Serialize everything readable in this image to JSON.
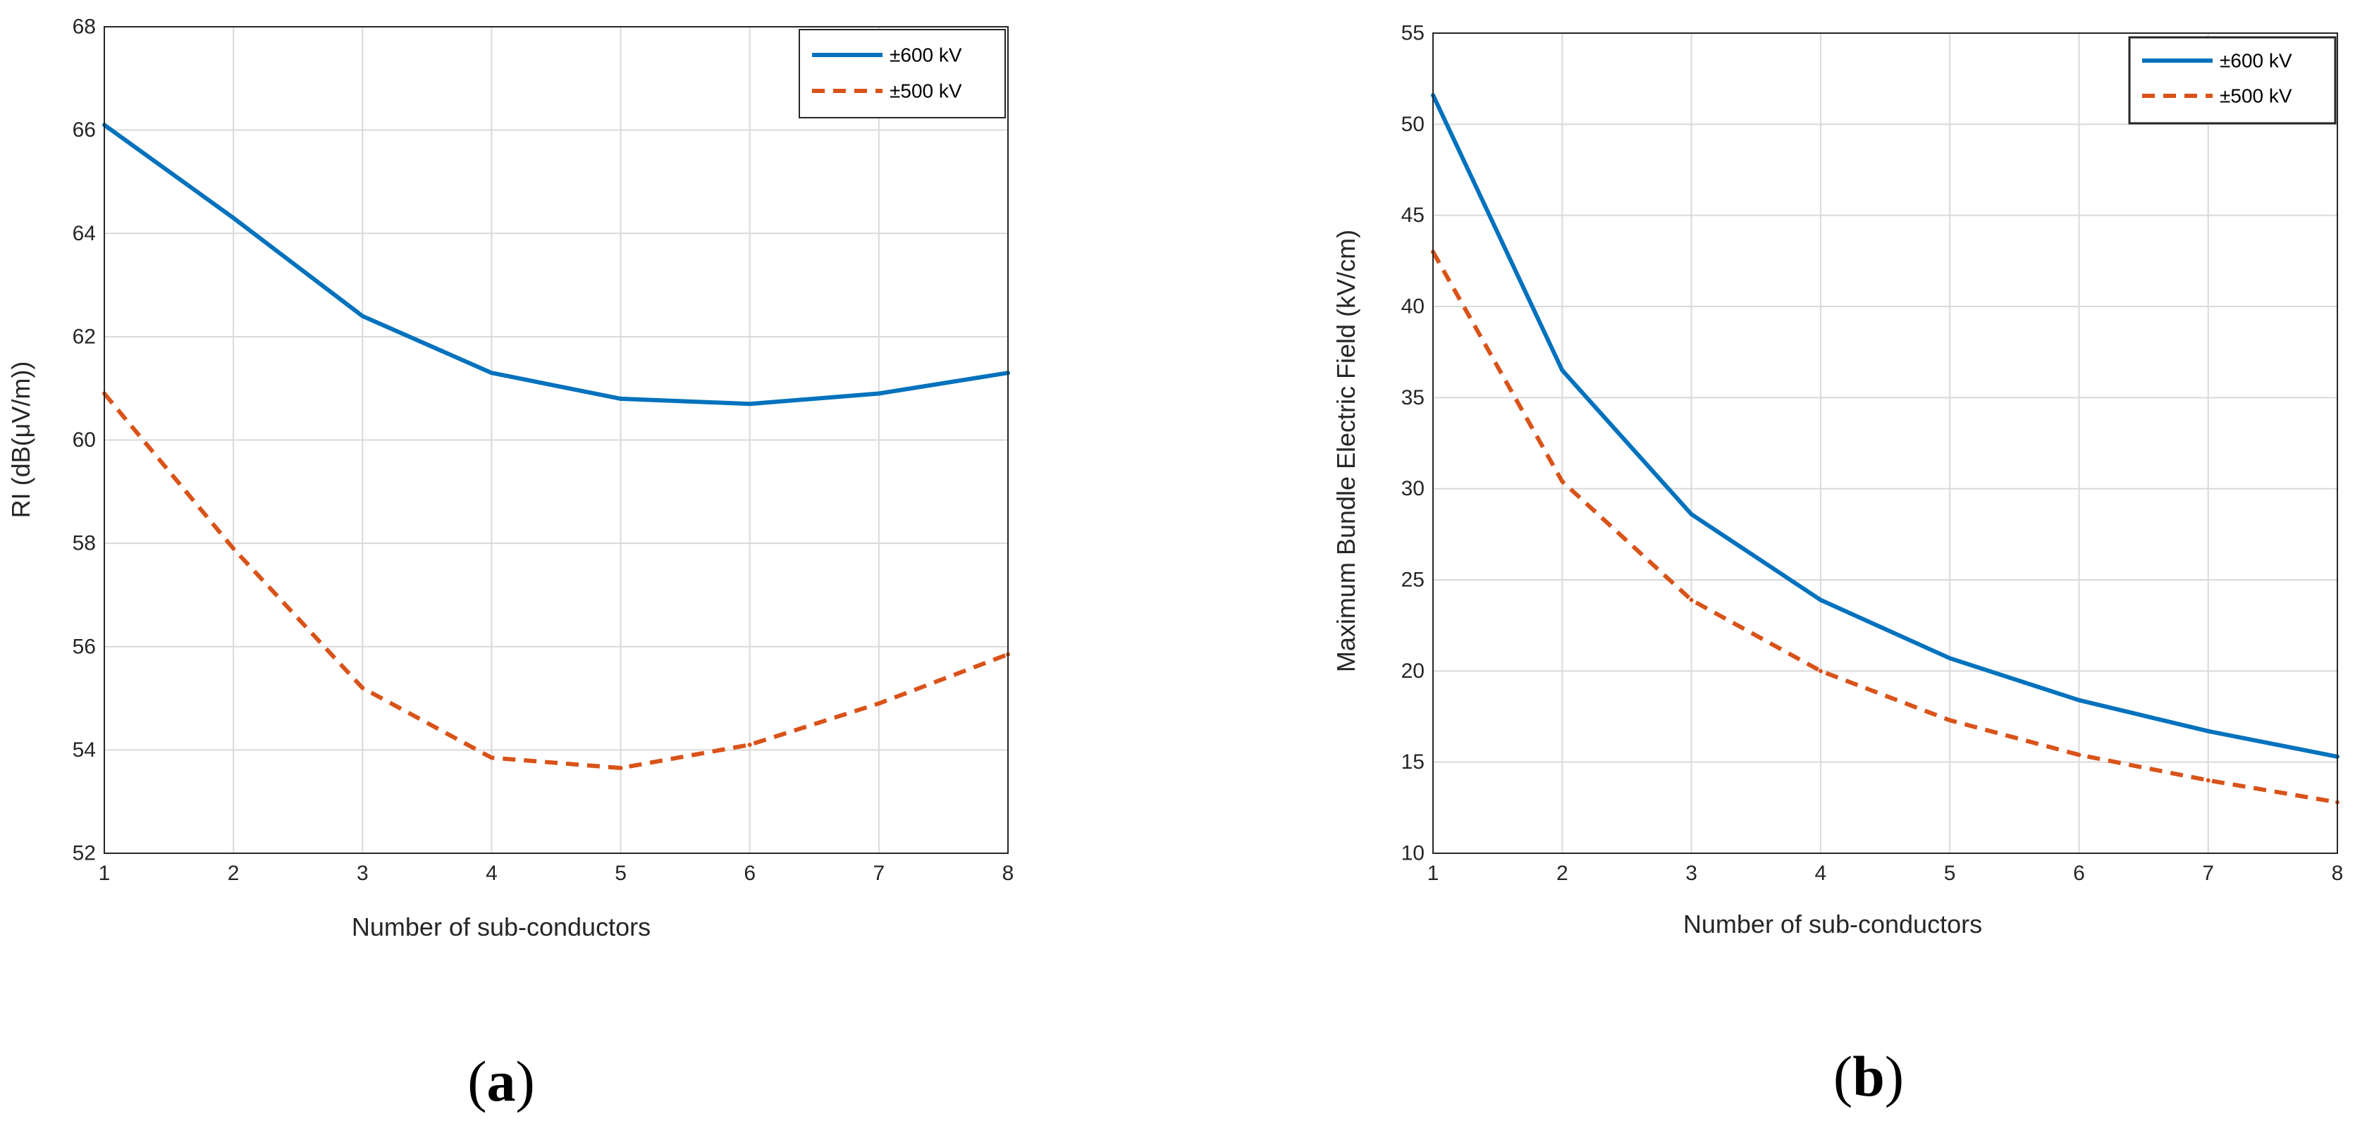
{
  "chart_data": [
    {
      "type": "line",
      "panel_label": "(a)",
      "panel_letter": "a",
      "title": "",
      "xlabel": "Number of sub-conductors",
      "ylabel": "RI (dB(μV/m))",
      "x": [
        1,
        2,
        3,
        4,
        5,
        6,
        7,
        8
      ],
      "xlim": [
        1,
        8
      ],
      "ylim": [
        52,
        68
      ],
      "xticks": [
        1,
        2,
        3,
        4,
        5,
        6,
        7,
        8
      ],
      "yticks": [
        52,
        54,
        56,
        58,
        60,
        62,
        64,
        66,
        68
      ],
      "grid": true,
      "legend_position": "top-right",
      "series": [
        {
          "name": "±600 kV",
          "color": "#0072BD",
          "style": "solid",
          "values": [
            66.1,
            64.3,
            62.4,
            61.3,
            60.8,
            60.7,
            60.9,
            61.3
          ]
        },
        {
          "name": "±500 kV",
          "color": "#D95319",
          "style": "dashed",
          "values": [
            60.9,
            57.9,
            55.2,
            53.85,
            53.65,
            54.1,
            54.9,
            55.85
          ]
        }
      ]
    },
    {
      "type": "line",
      "panel_label": "(b)",
      "panel_letter": "b",
      "title": "",
      "xlabel": "Number of sub-conductors",
      "ylabel": "Maximum Bundle Electric Field (kV/cm)",
      "x": [
        1,
        2,
        3,
        4,
        5,
        6,
        7,
        8
      ],
      "xlim": [
        1,
        8
      ],
      "ylim": [
        10,
        55
      ],
      "xticks": [
        1,
        2,
        3,
        4,
        5,
        6,
        7,
        8
      ],
      "yticks": [
        10,
        15,
        20,
        25,
        30,
        35,
        40,
        45,
        50,
        55
      ],
      "grid": true,
      "legend_position": "top-right",
      "series": [
        {
          "name": "±600 kV",
          "color": "#0072BD",
          "style": "solid",
          "values": [
            51.6,
            36.5,
            28.6,
            23.9,
            20.7,
            18.4,
            16.7,
            15.3
          ]
        },
        {
          "name": "±500 kV",
          "color": "#D95319",
          "style": "dashed",
          "values": [
            43.0,
            30.4,
            23.9,
            20.0,
            17.3,
            15.4,
            14.0,
            12.8
          ]
        }
      ]
    }
  ]
}
